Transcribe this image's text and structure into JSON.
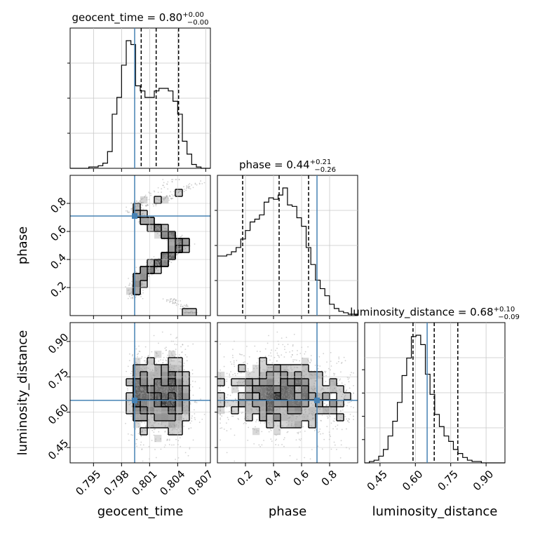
{
  "chart_data": {
    "type": "corner",
    "parameters": [
      "geocent_time",
      "phase",
      "luminosity_distance"
    ],
    "truth": {
      "geocent_time": 0.7994,
      "phase": 0.71,
      "luminosity_distance": 0.65
    },
    "truth_color": "#4682b4",
    "titles": [
      {
        "name": "geocent_time",
        "median": "0.80",
        "plus": "+0.00",
        "minus": "−0.00"
      },
      {
        "name": "phase",
        "median": "0.44",
        "plus": "+0.21",
        "minus": "−0.26"
      },
      {
        "name": "luminosity_distance",
        "median": "0.68",
        "plus": "+0.10",
        "minus": "−0.09"
      }
    ],
    "axes": {
      "geocent_time": {
        "range": [
          0.7925,
          0.8075
        ],
        "ticks": [
          0.795,
          0.798,
          0.801,
          0.804,
          0.807
        ],
        "tick_labels": [
          "0.795",
          "0.798",
          "0.801",
          "0.804",
          "0.807"
        ],
        "label": "geocent_time"
      },
      "phase": {
        "range": [
          0.0,
          1.0
        ],
        "ticks": [
          0.2,
          0.4,
          0.6,
          0.8
        ],
        "tick_labels": [
          "0.2",
          "0.4",
          "0.6",
          "0.8"
        ],
        "label": "phase"
      },
      "luminosity_distance": {
        "range": [
          0.385,
          0.98
        ],
        "ticks": [
          0.45,
          0.6,
          0.75,
          0.9
        ],
        "tick_labels": [
          "0.45",
          "0.60",
          "0.75",
          "0.90"
        ],
        "label": "luminosity_distance"
      }
    },
    "histograms": {
      "geocent_time": {
        "bin_start": 0.7925,
        "bin_width": 0.0005,
        "counts": [
          0,
          0,
          0,
          0,
          0.01,
          0.01,
          0.02,
          0.04,
          0.13,
          0.42,
          0.55,
          0.8,
          0.99,
          0.96,
          0.64,
          0.6,
          0.55,
          0.55,
          0.6,
          0.62,
          0.62,
          0.6,
          0.52,
          0.42,
          0.21,
          0.11,
          0.03,
          0.01,
          0,
          0
        ],
        "quantiles": [
          0.8001,
          0.8017,
          0.8041
        ]
      },
      "phase": {
        "bin_start": 0.0,
        "bin_width": 0.0333,
        "counts": [
          0.42,
          0.42,
          0.43,
          0.45,
          0.48,
          0.54,
          0.6,
          0.66,
          0.68,
          0.71,
          0.8,
          0.83,
          0.82,
          0.85,
          0.9,
          0.78,
          0.77,
          0.69,
          0.63,
          0.48,
          0.36,
          0.25,
          0.19,
          0.14,
          0.08,
          0.05,
          0.03,
          0.02,
          0.01,
          0.01
        ],
        "quantiles": [
          0.18,
          0.44,
          0.65
        ]
      },
      "luminosity_distance": {
        "bin_start": 0.385,
        "bin_width": 0.0198,
        "counts": [
          0,
          0.01,
          0.02,
          0.05,
          0.1,
          0.2,
          0.31,
          0.45,
          0.65,
          0.78,
          0.94,
          0.95,
          0.88,
          0.66,
          0.51,
          0.36,
          0.27,
          0.2,
          0.16,
          0.1,
          0.07,
          0.04,
          0.02,
          0.01,
          0.01,
          0,
          0,
          0,
          0,
          0
        ],
        "quantiles": [
          0.59,
          0.68,
          0.78
        ]
      }
    },
    "grid": true
  }
}
